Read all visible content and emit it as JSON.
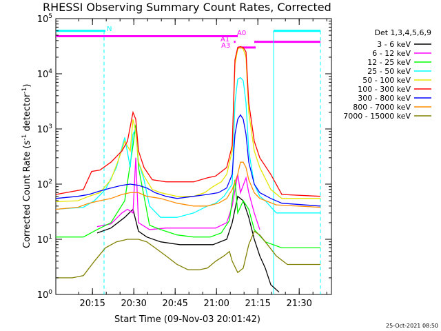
{
  "chart_data": {
    "type": "line",
    "title": "RHESSI Observing Summary Count Rates, Corrected",
    "ylabel_pre": "Corrected Count Rate (s",
    "ylabel_sup": "-1",
    "ylabel_mid": " detector",
    "ylabel_post": ")",
    "xlabel": "Start Time (09-Nov-03 20:01:42)",
    "y_scale": "log",
    "ylim": [
      1,
      100000
    ],
    "xlim_minutes": [
      0,
      100
    ],
    "x_unit": "minutes after 20:01:42",
    "x_ticks": [
      {
        "label": "20:15",
        "m": 13.3
      },
      {
        "label": "20:30",
        "m": 28.3
      },
      {
        "label": "20:45",
        "m": 43.3
      },
      {
        "label": "21:00",
        "m": 58.3
      },
      {
        "label": "21:15",
        "m": 73.3
      },
      {
        "label": "21:30",
        "m": 88.3
      }
    ],
    "y_ticks": [
      {
        "base": "10",
        "exp": "0",
        "v": 1
      },
      {
        "base": "10",
        "exp": "1",
        "v": 10
      },
      {
        "base": "10",
        "exp": "2",
        "v": 100
      },
      {
        "base": "10",
        "exp": "3",
        "v": 1000
      },
      {
        "base": "10",
        "exp": "4",
        "v": 10000
      },
      {
        "base": "10",
        "exp": "5",
        "v": 100000
      }
    ],
    "legend_title": "Det 1,3,4,5,6,9",
    "legend_placement": "right",
    "series": [
      {
        "name": "3 - 6 keV",
        "color": "#000000",
        "points": [
          [
            15,
            13
          ],
          [
            20,
            16
          ],
          [
            25,
            25
          ],
          [
            28,
            35
          ],
          [
            30,
            14
          ],
          [
            33,
            11
          ],
          [
            38,
            9
          ],
          [
            45,
            8
          ],
          [
            52,
            8
          ],
          [
            57,
            8
          ],
          [
            62,
            10
          ],
          [
            64,
            20
          ],
          [
            66,
            60
          ],
          [
            68,
            50
          ],
          [
            70,
            25
          ],
          [
            72,
            10
          ],
          [
            74,
            5
          ],
          [
            76,
            3
          ],
          [
            78,
            1.5
          ],
          [
            81,
            1.1
          ]
        ]
      },
      {
        "name": "6 - 12 keV",
        "color": "#ff00ff",
        "points": [
          [
            15,
            17
          ],
          [
            20,
            19
          ],
          [
            24,
            30
          ],
          [
            26,
            35
          ],
          [
            28,
            30
          ],
          [
            29,
            300
          ],
          [
            30,
            20
          ],
          [
            34,
            15
          ],
          [
            40,
            16
          ],
          [
            50,
            16
          ],
          [
            58,
            16
          ],
          [
            62,
            20
          ],
          [
            64,
            40
          ],
          [
            66,
            150
          ],
          [
            67,
            70
          ],
          [
            69,
            130
          ],
          [
            70,
            70
          ],
          [
            72,
            30
          ],
          [
            74,
            15
          ]
        ]
      },
      {
        "name": "12 - 25 keV",
        "color": "#00ff00",
        "points": [
          [
            0,
            11
          ],
          [
            10,
            11
          ],
          [
            15,
            15
          ],
          [
            20,
            20
          ],
          [
            25,
            50
          ],
          [
            28,
            500
          ],
          [
            29,
            1200
          ],
          [
            30,
            200
          ],
          [
            32,
            60
          ],
          [
            34,
            18
          ],
          [
            38,
            15
          ],
          [
            44,
            12
          ],
          [
            50,
            11
          ],
          [
            56,
            11
          ],
          [
            60,
            13
          ],
          [
            63,
            22
          ],
          [
            65,
            120
          ],
          [
            66,
            30
          ],
          [
            68,
            50
          ],
          [
            70,
            35
          ],
          [
            72,
            15
          ],
          [
            76,
            9
          ],
          [
            82,
            7
          ],
          [
            96,
            7
          ]
        ]
      },
      {
        "name": "25 - 50 keV",
        "color": "#00ffff",
        "points": [
          [
            0,
            35
          ],
          [
            10,
            38
          ],
          [
            14,
            50
          ],
          [
            18,
            80
          ],
          [
            22,
            200
          ],
          [
            25,
            700
          ],
          [
            27,
            200
          ],
          [
            28,
            800
          ],
          [
            29,
            1000
          ],
          [
            30,
            250
          ],
          [
            32,
            120
          ],
          [
            34,
            40
          ],
          [
            38,
            25
          ],
          [
            44,
            25
          ],
          [
            50,
            30
          ],
          [
            55,
            40
          ],
          [
            58,
            45
          ],
          [
            61,
            60
          ],
          [
            64,
            100
          ],
          [
            65,
            3000
          ],
          [
            66,
            8000
          ],
          [
            67,
            8500
          ],
          [
            68,
            7500
          ],
          [
            69,
            3000
          ],
          [
            70,
            400
          ],
          [
            72,
            100
          ],
          [
            74,
            60
          ],
          [
            76,
            50
          ],
          [
            80,
            30
          ],
          [
            96,
            30
          ]
        ]
      },
      {
        "name": "50 - 100 keV",
        "color": "#e6e600",
        "points": [
          [
            0,
            48
          ],
          [
            8,
            50
          ],
          [
            12,
            60
          ],
          [
            16,
            70
          ],
          [
            20,
            120
          ],
          [
            23,
            300
          ],
          [
            25,
            600
          ],
          [
            27,
            400
          ],
          [
            28,
            1500
          ],
          [
            29,
            900
          ],
          [
            30,
            250
          ],
          [
            32,
            140
          ],
          [
            35,
            80
          ],
          [
            38,
            70
          ],
          [
            44,
            60
          ],
          [
            50,
            60
          ],
          [
            54,
            70
          ],
          [
            57,
            90
          ],
          [
            60,
            110
          ],
          [
            62,
            150
          ],
          [
            64,
            400
          ],
          [
            65,
            15000
          ],
          [
            66,
            28000
          ],
          [
            67,
            30000
          ],
          [
            68,
            28000
          ],
          [
            69,
            20000
          ],
          [
            70,
            2000
          ],
          [
            72,
            400
          ],
          [
            74,
            200
          ],
          [
            78,
            80
          ],
          [
            82,
            55
          ],
          [
            96,
            55
          ]
        ]
      },
      {
        "name": "100 - 300 keV",
        "color": "#ff0000",
        "points": [
          [
            0,
            65
          ],
          [
            10,
            80
          ],
          [
            13,
            170
          ],
          [
            16,
            180
          ],
          [
            20,
            250
          ],
          [
            24,
            400
          ],
          [
            26,
            600
          ],
          [
            28,
            2000
          ],
          [
            29,
            1500
          ],
          [
            30,
            400
          ],
          [
            32,
            200
          ],
          [
            35,
            120
          ],
          [
            40,
            110
          ],
          [
            45,
            110
          ],
          [
            50,
            110
          ],
          [
            55,
            130
          ],
          [
            58,
            140
          ],
          [
            62,
            200
          ],
          [
            64,
            500
          ],
          [
            65,
            18000
          ],
          [
            66,
            30000
          ],
          [
            67,
            31000
          ],
          [
            68,
            30000
          ],
          [
            69,
            25000
          ],
          [
            70,
            3000
          ],
          [
            72,
            600
          ],
          [
            74,
            300
          ],
          [
            78,
            150
          ],
          [
            82,
            65
          ],
          [
            96,
            60
          ]
        ]
      },
      {
        "name": "300 - 800 keV",
        "color": "#0000ff",
        "points": [
          [
            0,
            55
          ],
          [
            8,
            60
          ],
          [
            12,
            65
          ],
          [
            16,
            75
          ],
          [
            20,
            85
          ],
          [
            24,
            95
          ],
          [
            27,
            100
          ],
          [
            30,
            95
          ],
          [
            33,
            85
          ],
          [
            36,
            70
          ],
          [
            40,
            60
          ],
          [
            44,
            55
          ],
          [
            50,
            60
          ],
          [
            55,
            65
          ],
          [
            59,
            70
          ],
          [
            62,
            85
          ],
          [
            64,
            150
          ],
          [
            65,
            800
          ],
          [
            66,
            1500
          ],
          [
            67,
            1800
          ],
          [
            68,
            1500
          ],
          [
            69,
            800
          ],
          [
            70,
            250
          ],
          [
            72,
            100
          ],
          [
            74,
            70
          ],
          [
            78,
            55
          ],
          [
            82,
            45
          ],
          [
            96,
            40
          ]
        ]
      },
      {
        "name": "800 - 7000 keV",
        "color": "#ff8c00",
        "points": [
          [
            0,
            35
          ],
          [
            8,
            38
          ],
          [
            12,
            45
          ],
          [
            16,
            50
          ],
          [
            20,
            55
          ],
          [
            24,
            65
          ],
          [
            27,
            70
          ],
          [
            30,
            70
          ],
          [
            33,
            60
          ],
          [
            38,
            55
          ],
          [
            44,
            45
          ],
          [
            50,
            40
          ],
          [
            55,
            40
          ],
          [
            59,
            45
          ],
          [
            62,
            55
          ],
          [
            64,
            80
          ],
          [
            66,
            150
          ],
          [
            67,
            250
          ],
          [
            68,
            250
          ],
          [
            69,
            200
          ],
          [
            70,
            120
          ],
          [
            72,
            70
          ],
          [
            74,
            55
          ],
          [
            80,
            42
          ],
          [
            96,
            38
          ]
        ]
      },
      {
        "name": "7000 - 15000 keV",
        "color": "#808000",
        "points": [
          [
            0,
            2
          ],
          [
            6,
            2
          ],
          [
            10,
            2.2
          ],
          [
            14,
            4
          ],
          [
            18,
            7
          ],
          [
            22,
            9
          ],
          [
            26,
            10
          ],
          [
            30,
            10
          ],
          [
            33,
            9
          ],
          [
            36,
            7
          ],
          [
            40,
            5
          ],
          [
            44,
            3.5
          ],
          [
            48,
            2.8
          ],
          [
            52,
            2.8
          ],
          [
            55,
            3
          ],
          [
            58,
            4
          ],
          [
            61,
            5
          ],
          [
            63,
            6
          ],
          [
            64,
            4
          ],
          [
            66,
            2.5
          ],
          [
            68,
            3
          ],
          [
            70,
            8
          ],
          [
            72,
            14
          ],
          [
            74,
            12
          ],
          [
            76,
            9
          ],
          [
            80,
            5
          ],
          [
            84,
            3.5
          ],
          [
            96,
            3.5
          ]
        ]
      }
    ],
    "annotations": [
      {
        "text": "N",
        "color": "#00ffff"
      },
      {
        "text": "A0",
        "color": "#ff00ff"
      },
      {
        "text": "A1",
        "color": "#ff00ff"
      },
      {
        "text": "A3",
        "color": "#ff00ff"
      }
    ],
    "status_bars": [
      {
        "color": "#00ffff",
        "y": 60000,
        "from": 0,
        "to": 18
      },
      {
        "color": "#ff00ff",
        "y": 48000,
        "from": 0,
        "to": 66
      },
      {
        "color": "#00ffff",
        "y": 60000,
        "from": 79,
        "to": 96
      },
      {
        "color": "#ff00ff",
        "y": 38000,
        "from": 72,
        "to": 96
      },
      {
        "color": "#ff00ff",
        "y": 38000,
        "from": 64.6,
        "to": 65.2
      },
      {
        "color": "#ff00ff",
        "y": 30000,
        "from": 66,
        "to": 72.5
      }
    ],
    "vlines": [
      {
        "color": "#00ffff",
        "m": 17.5,
        "style": "dashed"
      },
      {
        "color": "#00ffff",
        "m": 79,
        "style": "solid"
      },
      {
        "color": "#00ffff",
        "m": 96,
        "style": "dashed"
      }
    ]
  },
  "footer": {
    "timestamp": "25-Oct-2021 08:50"
  }
}
